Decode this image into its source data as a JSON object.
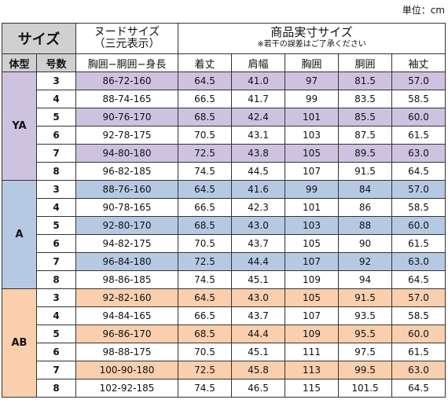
{
  "unit_label": "単位：cm",
  "header": {
    "size": "サイズ",
    "nude_line1": "ヌードサイズ",
    "nude_line2": "（三元表示）",
    "jitsu_line1": "商品実寸サイズ",
    "jitsu_note": "※若干の誤差はご了承ください",
    "body_type": "体型",
    "number": "号数",
    "nude_cols": "胸囲−胴囲−身長",
    "measures": [
      "着丈",
      "肩幅",
      "胸囲",
      "胴囲",
      "袖丈"
    ]
  },
  "groups": [
    {
      "type": "YA",
      "rows": [
        {
          "no": "3",
          "nude": "86-72-160",
          "vals": [
            "64.5",
            "41.0",
            "97",
            "81.5",
            "57.0"
          ]
        },
        {
          "no": "4",
          "nude": "88-74-165",
          "vals": [
            "66.5",
            "41.7",
            "99",
            "83.5",
            "58.5"
          ]
        },
        {
          "no": "5",
          "nude": "90-76-170",
          "vals": [
            "68.5",
            "42.4",
            "101",
            "85.5",
            "60.0"
          ]
        },
        {
          "no": "6",
          "nude": "92-78-175",
          "vals": [
            "70.5",
            "43.1",
            "103",
            "87.5",
            "61.5"
          ]
        },
        {
          "no": "7",
          "nude": "94-80-180",
          "vals": [
            "72.5",
            "43.8",
            "105",
            "89.5",
            "63.0"
          ]
        },
        {
          "no": "8",
          "nude": "96-82-185",
          "vals": [
            "74.5",
            "44.5",
            "107",
            "91.5",
            "64.5"
          ]
        }
      ]
    },
    {
      "type": "A",
      "rows": [
        {
          "no": "3",
          "nude": "88-76-160",
          "vals": [
            "64.5",
            "41.6",
            "99",
            "84",
            "57.0"
          ]
        },
        {
          "no": "4",
          "nude": "90-78-165",
          "vals": [
            "66.5",
            "42.3",
            "101",
            "86",
            "58.5"
          ]
        },
        {
          "no": "5",
          "nude": "92-80-170",
          "vals": [
            "68.5",
            "43.0",
            "103",
            "88",
            "60.0"
          ]
        },
        {
          "no": "6",
          "nude": "94-82-175",
          "vals": [
            "70.5",
            "43.7",
            "105",
            "90",
            "61.5"
          ]
        },
        {
          "no": "7",
          "nude": "96-84-180",
          "vals": [
            "72.5",
            "44.4",
            "107",
            "92",
            "63.0"
          ]
        },
        {
          "no": "8",
          "nude": "98-86-185",
          "vals": [
            "74.5",
            "45.1",
            "109",
            "94",
            "64.5"
          ]
        }
      ]
    },
    {
      "type": "AB",
      "rows": [
        {
          "no": "3",
          "nude": "92-82-160",
          "vals": [
            "64.5",
            "43.0",
            "105",
            "91.5",
            "57.0"
          ]
        },
        {
          "no": "4",
          "nude": "94-84-165",
          "vals": [
            "66.5",
            "43.7",
            "107",
            "93.5",
            "58.5"
          ]
        },
        {
          "no": "5",
          "nude": "96-86-170",
          "vals": [
            "68.5",
            "44.4",
            "109",
            "95.5",
            "60.0"
          ]
        },
        {
          "no": "6",
          "nude": "98-88-175",
          "vals": [
            "70.5",
            "45.1",
            "111",
            "97.5",
            "61.5"
          ]
        },
        {
          "no": "7",
          "nude": "100-90-180",
          "vals": [
            "72.5",
            "45.8",
            "113",
            "99.5",
            "63.0"
          ]
        },
        {
          "no": "8",
          "nude": "102-92-185",
          "vals": [
            "74.5",
            "46.5",
            "115",
            "101.5",
            "64.5"
          ]
        }
      ]
    }
  ],
  "colors": {
    "YA": "#cdc3e0",
    "A": "#b6c9e3",
    "AB": "#f9cfae",
    "header": "#d0d0d0"
  }
}
